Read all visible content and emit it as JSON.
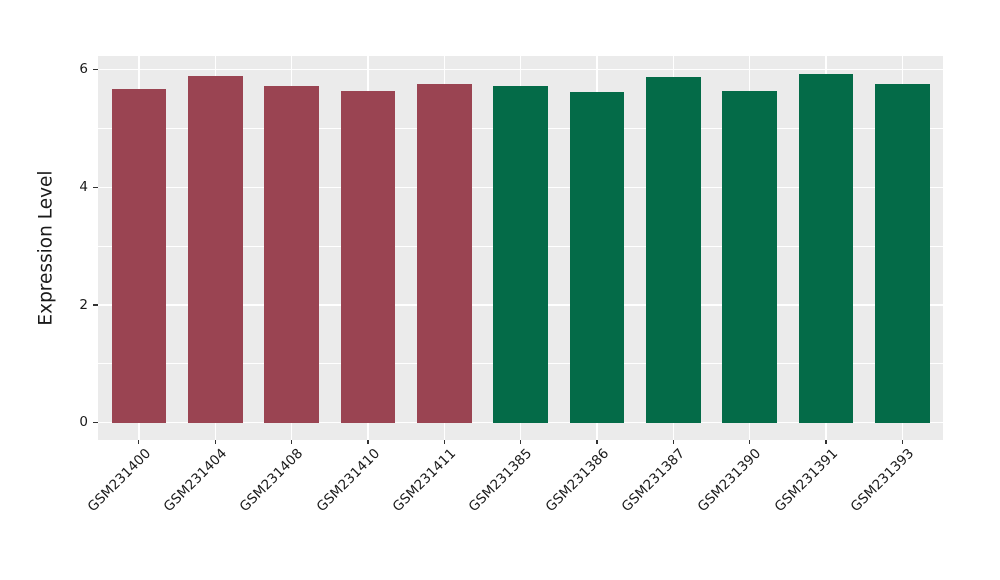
{
  "chart_data": {
    "type": "bar",
    "title": "",
    "ylabel": "Expression Level",
    "xlabel": "",
    "categories": [
      "GSM231400",
      "GSM231404",
      "GSM231408",
      "GSM231410",
      "GSM231411",
      "GSM231385",
      "GSM231386",
      "GSM231387",
      "GSM231390",
      "GSM231391",
      "GSM231393"
    ],
    "values": [
      5.67,
      5.9,
      5.73,
      5.64,
      5.76,
      5.73,
      5.62,
      5.88,
      5.63,
      5.92,
      5.76
    ],
    "bar_colors": [
      "#9A4452",
      "#9A4452",
      "#9A4452",
      "#9A4452",
      "#9A4452",
      "#046B48",
      "#046B48",
      "#046B48",
      "#046B48",
      "#046B48",
      "#046B48"
    ],
    "yticks": [
      "0",
      "2",
      "4",
      "6"
    ],
    "ytick_values": [
      0,
      2,
      4,
      6
    ],
    "minor_ytick_values": [
      1,
      3,
      5
    ],
    "ylim": [
      -0.29,
      6.22
    ],
    "legend": "none",
    "grid": "horizontal major+minor white, vertical major at category centers",
    "panel_background": "#EBEBEB",
    "gridline_color": "#FFFFFF",
    "tick_mark_color": "#333333",
    "text_color": "#1A1A1A"
  }
}
